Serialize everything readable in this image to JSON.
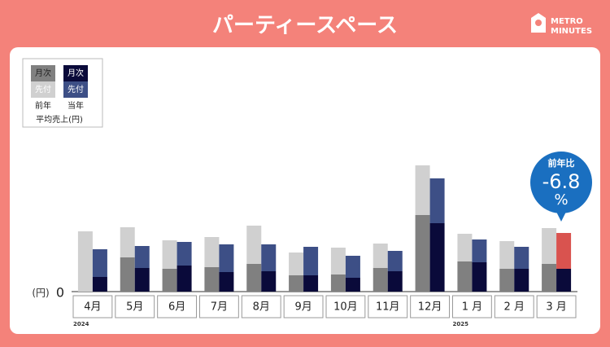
{
  "chart_data": {
    "type": "grouped_stacked_bar",
    "title": "パーティースペース",
    "brand": [
      "METRO",
      "MINUTES"
    ],
    "categories": [
      "4月",
      "5月",
      "6月",
      "7月",
      "8月",
      "9月",
      "10月",
      "11月",
      "12月",
      "1 月",
      "2 月",
      "3 月"
    ],
    "year_labels": [
      {
        "index": 0,
        "label": "2024"
      },
      {
        "index": 9,
        "label": "2025"
      }
    ],
    "series": [
      {
        "name": "前年",
        "segments": [
          {
            "name": "先付",
            "color": "#808080",
            "values": [
              0,
              42,
              28,
              30,
              34,
              20,
              21,
              29,
              94,
              37,
              28,
              34
            ]
          },
          {
            "name": "月次",
            "color": "#d0d0d0",
            "values": [
              74,
              37,
              35,
              37,
              47,
              28,
              33,
              30,
              61,
              34,
              34,
              44
            ]
          }
        ]
      },
      {
        "name": "当年",
        "segments": [
          {
            "name": "先付",
            "color": "#0a0a3a",
            "values": [
              18,
              29,
              32,
              24,
              25,
              20,
              17,
              25,
              84,
              36,
              28,
              28
            ]
          },
          {
            "name": "月次",
            "color": "#3d4f86",
            "values": [
              34,
              27,
              29,
              34,
              33,
              35,
              27,
              25,
              55,
              28,
              27,
              44
            ]
          }
        ]
      }
    ],
    "highlight": {
      "series": 1,
      "segment": 1,
      "index": 11,
      "color": "#d9534f"
    },
    "legend_title": "平均売上(円)",
    "y_unit": "(円)",
    "ylim": [
      0,
      170
    ],
    "yticks": [
      0
    ],
    "annotation": {
      "label": "前年比",
      "value": -6.8,
      "unit": "%",
      "color": "#1a6fc0"
    }
  }
}
